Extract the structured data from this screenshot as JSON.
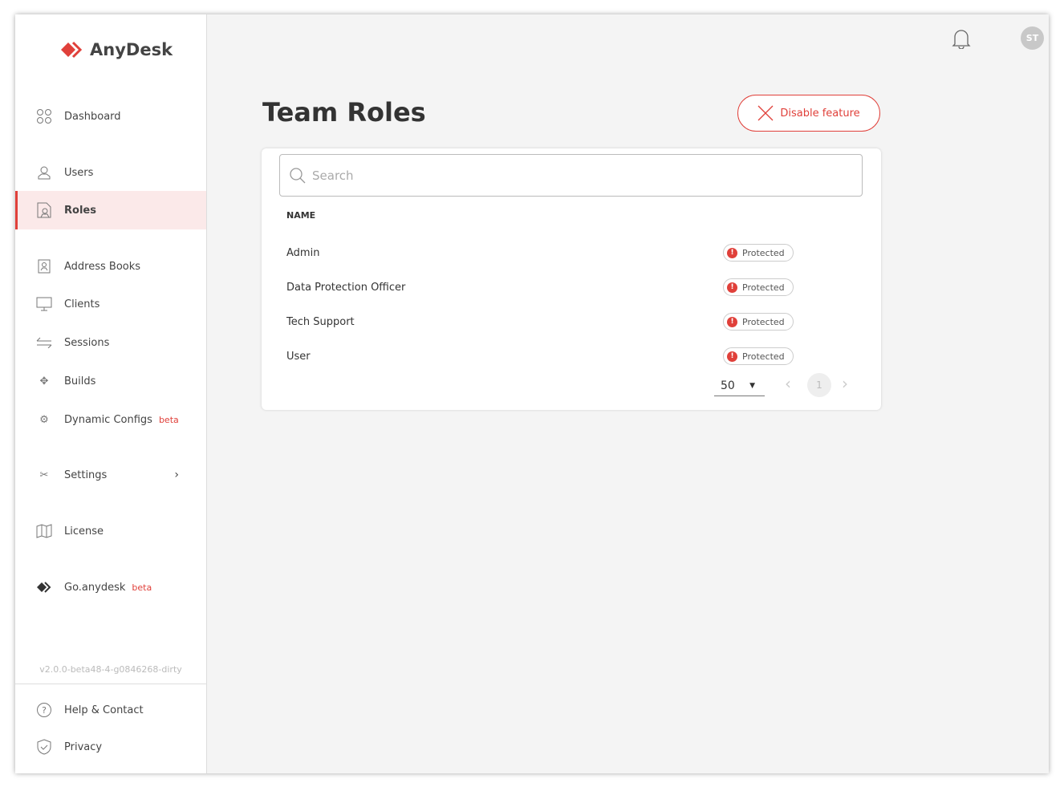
{
  "brand": {
    "name": "AnyDesk",
    "color": "#e0403a"
  },
  "sidebar": {
    "items": [
      {
        "label": "Dashboard",
        "icon": "dashboard-icon"
      },
      {
        "label": "Users",
        "icon": "user-icon"
      },
      {
        "label": "Roles",
        "icon": "roles-icon",
        "active": true
      },
      {
        "label": "Address Books",
        "icon": "address-book-icon"
      },
      {
        "label": "Clients",
        "icon": "monitor-icon"
      },
      {
        "label": "Sessions",
        "icon": "sessions-icon"
      },
      {
        "label": "Builds",
        "icon": "builds-icon"
      },
      {
        "label": "Dynamic Configs",
        "icon": "gear-icon",
        "badge": "beta"
      },
      {
        "label": "Settings",
        "icon": "tools-icon"
      },
      {
        "label": "License",
        "icon": "book-icon"
      },
      {
        "label": "Go.anydesk",
        "icon": "anydesk-icon",
        "badge": "beta"
      }
    ],
    "version": "v2.0.0-beta48-4-g0846268-dirty",
    "footer": [
      {
        "label": "Help & Contact",
        "icon": "help-icon"
      },
      {
        "label": "Privacy",
        "icon": "shield-icon"
      }
    ]
  },
  "header": {
    "avatar": "ST"
  },
  "main": {
    "title": "Team Roles",
    "disable_label": "Disable feature",
    "search_placeholder": "Search",
    "column": "NAME",
    "rows": [
      {
        "name": "Admin",
        "badge": "Protected"
      },
      {
        "name": "Data Protection Officer",
        "badge": "Protected"
      },
      {
        "name": "Tech Support",
        "badge": "Protected"
      },
      {
        "name": "User",
        "badge": "Protected"
      }
    ],
    "page_size": "50",
    "page": "1"
  }
}
